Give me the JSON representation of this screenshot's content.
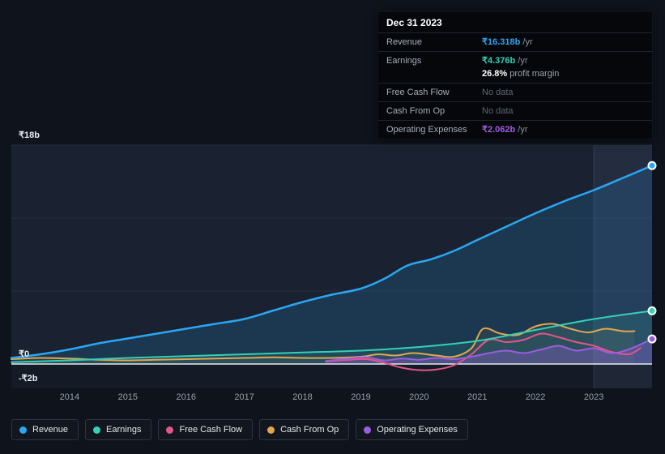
{
  "tooltip": {
    "date": "Dec 31 2023",
    "rows": [
      {
        "label": "Revenue",
        "value": "₹16.318b",
        "suffix": " /yr",
        "color": "#2aa7f2"
      },
      {
        "label": "Earnings",
        "value": "₹4.376b",
        "suffix": " /yr",
        "color": "#35d0b5",
        "margin_bold": "26.8%",
        "margin_text": " profit margin"
      },
      {
        "label": "Free Cash Flow",
        "value": "No data"
      },
      {
        "label": "Cash From Op",
        "value": "No data"
      },
      {
        "label": "Operating Expenses",
        "value": "₹2.062b",
        "suffix": " /yr",
        "color": "#9d5ce0"
      }
    ]
  },
  "legend": {
    "items": [
      {
        "label": "Revenue",
        "color": "#2aa7f2"
      },
      {
        "label": "Earnings",
        "color": "#35d0b5"
      },
      {
        "label": "Free Cash Flow",
        "color": "#e5548c"
      },
      {
        "label": "Cash From Op",
        "color": "#e2a64f"
      },
      {
        "label": "Operating Expenses",
        "color": "#9d5ce0"
      }
    ]
  },
  "chart_data": {
    "type": "line",
    "currency": "₹",
    "unit": "billions",
    "x_range": [
      2013,
      2024
    ],
    "highlight_from": 2023,
    "y_axis": {
      "min": -2,
      "max": 18,
      "ticks": [
        {
          "label": "₹18b",
          "value": 18
        },
        {
          "label": "₹0",
          "value": 0
        },
        {
          "label": "-₹2b",
          "value": -2
        }
      ],
      "gridline_values": [
        6,
        12,
        18
      ]
    },
    "x_ticks": [
      "2014",
      "2015",
      "2016",
      "2017",
      "2018",
      "2019",
      "2020",
      "2021",
      "2022",
      "2023"
    ],
    "series": [
      {
        "name": "Revenue",
        "color": "#2aa7f2",
        "fill_opacity": 0.16,
        "width": 2.5,
        "z": 5,
        "end_marker": true,
        "points": [
          [
            2013,
            0.5
          ],
          [
            2013.5,
            0.8
          ],
          [
            2014,
            1.2
          ],
          [
            2014.5,
            1.7
          ],
          [
            2015,
            2.1
          ],
          [
            2015.5,
            2.5
          ],
          [
            2016,
            2.9
          ],
          [
            2016.5,
            3.3
          ],
          [
            2017,
            3.7
          ],
          [
            2017.5,
            4.4
          ],
          [
            2018,
            5.1
          ],
          [
            2018.5,
            5.7
          ],
          [
            2019,
            6.2
          ],
          [
            2019.4,
            7.0
          ],
          [
            2019.8,
            8.1
          ],
          [
            2020.2,
            8.6
          ],
          [
            2020.6,
            9.3
          ],
          [
            2021,
            10.2
          ],
          [
            2021.5,
            11.3
          ],
          [
            2022,
            12.4
          ],
          [
            2022.5,
            13.4
          ],
          [
            2023,
            14.3
          ],
          [
            2023.5,
            15.3
          ],
          [
            2024,
            16.318
          ]
        ]
      },
      {
        "name": "Earnings",
        "color": "#35d0b5",
        "fill_opacity": 0.13,
        "width": 2,
        "z": 4,
        "end_marker": true,
        "points": [
          [
            2013,
            0.15
          ],
          [
            2014,
            0.3
          ],
          [
            2015,
            0.5
          ],
          [
            2016,
            0.65
          ],
          [
            2017,
            0.8
          ],
          [
            2018,
            0.95
          ],
          [
            2019,
            1.1
          ],
          [
            2020,
            1.4
          ],
          [
            2021,
            1.9
          ],
          [
            2022,
            2.8
          ],
          [
            2023,
            3.7
          ],
          [
            2024,
            4.376
          ]
        ]
      },
      {
        "name": "Free Cash Flow",
        "color": "#e5548c",
        "fill_opacity": 0,
        "width": 2,
        "z": 2,
        "end_marker": false,
        "points": [
          [
            2018.4,
            0.2
          ],
          [
            2018.8,
            0.35
          ],
          [
            2019.1,
            0.4
          ],
          [
            2019.4,
            0.1
          ],
          [
            2019.7,
            -0.3
          ],
          [
            2020,
            -0.5
          ],
          [
            2020.3,
            -0.45
          ],
          [
            2020.6,
            -0.1
          ],
          [
            2020.9,
            0.8
          ],
          [
            2021.2,
            2.0
          ],
          [
            2021.5,
            1.8
          ],
          [
            2021.8,
            2.0
          ],
          [
            2022.1,
            2.5
          ],
          [
            2022.4,
            2.2
          ],
          [
            2022.7,
            1.8
          ],
          [
            2023,
            1.5
          ],
          [
            2023.3,
            1.0
          ],
          [
            2023.6,
            0.8
          ],
          [
            2023.8,
            1.3
          ]
        ]
      },
      {
        "name": "Cash From Op",
        "color": "#e2a64f",
        "fill_opacity": 0.07,
        "width": 2,
        "z": 1,
        "end_marker": false,
        "points": [
          [
            2013,
            0.4
          ],
          [
            2013.5,
            0.5
          ],
          [
            2014,
            0.45
          ],
          [
            2014.5,
            0.35
          ],
          [
            2015,
            0.3
          ],
          [
            2015.5,
            0.35
          ],
          [
            2016,
            0.4
          ],
          [
            2016.5,
            0.45
          ],
          [
            2017,
            0.5
          ],
          [
            2017.5,
            0.55
          ],
          [
            2018,
            0.5
          ],
          [
            2018.5,
            0.5
          ],
          [
            2019,
            0.6
          ],
          [
            2019.3,
            0.8
          ],
          [
            2019.6,
            0.7
          ],
          [
            2019.9,
            0.9
          ],
          [
            2020.3,
            0.7
          ],
          [
            2020.6,
            0.6
          ],
          [
            2020.9,
            1.3
          ],
          [
            2021.1,
            2.9
          ],
          [
            2021.4,
            2.5
          ],
          [
            2021.7,
            2.4
          ],
          [
            2022,
            3.1
          ],
          [
            2022.3,
            3.3
          ],
          [
            2022.6,
            2.9
          ],
          [
            2022.9,
            2.6
          ],
          [
            2023.2,
            2.9
          ],
          [
            2023.5,
            2.7
          ],
          [
            2023.7,
            2.7
          ]
        ]
      },
      {
        "name": "Operating Expenses",
        "color": "#9d5ce0",
        "fill_opacity": 0.32,
        "width": 2,
        "z": 3,
        "end_marker": true,
        "points": [
          [
            2018.4,
            0.25
          ],
          [
            2018.8,
            0.45
          ],
          [
            2019.1,
            0.55
          ],
          [
            2019.4,
            0.3
          ],
          [
            2019.7,
            0.45
          ],
          [
            2020,
            0.35
          ],
          [
            2020.3,
            0.5
          ],
          [
            2020.6,
            0.4
          ],
          [
            2020.9,
            0.6
          ],
          [
            2021.2,
            0.9
          ],
          [
            2021.5,
            1.1
          ],
          [
            2021.8,
            0.9
          ],
          [
            2022.1,
            1.2
          ],
          [
            2022.4,
            1.5
          ],
          [
            2022.7,
            1.1
          ],
          [
            2023,
            1.3
          ],
          [
            2023.3,
            0.9
          ],
          [
            2023.6,
            1.2
          ],
          [
            2024,
            2.062
          ]
        ]
      }
    ]
  }
}
